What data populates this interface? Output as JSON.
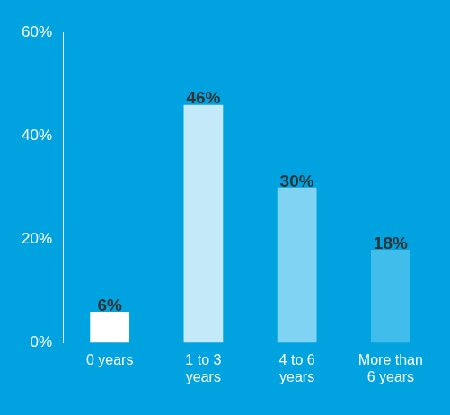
{
  "chart_data": {
    "type": "bar",
    "categories": [
      "0 years",
      "1 to 3 years",
      "4 to 6 years",
      "More than 6 years"
    ],
    "values": [
      6,
      46,
      30,
      18
    ],
    "value_labels": [
      "6%",
      "46%",
      "30%",
      "18%"
    ],
    "colors": [
      "#ffffff",
      "#c4e9f9",
      "#80d3f3",
      "#40bdeb"
    ],
    "ylim": [
      0,
      60
    ],
    "yticks": [
      {
        "value": 0,
        "label": "0%"
      },
      {
        "value": 20,
        "label": "20%"
      },
      {
        "value": 40,
        "label": "40%"
      },
      {
        "value": 60,
        "label": "60%"
      }
    ],
    "grid": false,
    "data_labels": true
  }
}
